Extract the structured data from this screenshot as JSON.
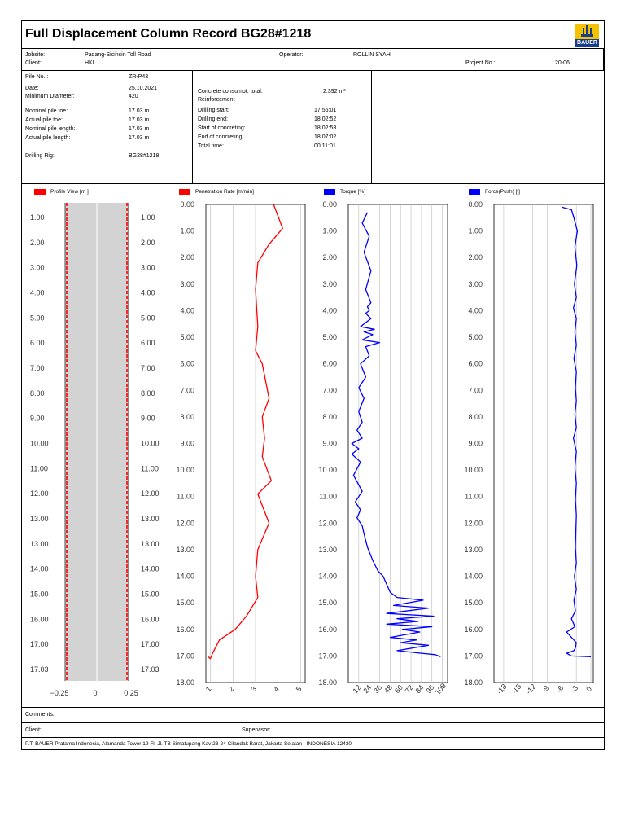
{
  "title": "Full Displacement Column Record BG28#1218",
  "logo_text": "BAUER",
  "colors": {
    "red": "#ff0000",
    "blue": "#0000ff",
    "logo_blue": "#1a3d8c",
    "logo_yellow": "#f5c200"
  },
  "info": {
    "jobsite_label": "Jobsite:",
    "jobsite": "Padang-Sicincin Toll Road",
    "operator_label": "Operator:",
    "operator": "ROLLIN SYAH",
    "client_label": "Client:",
    "client": "HKI",
    "project_label": "Project No.:",
    "project": "20-06",
    "pile_label": "Pile No..:",
    "pile": "ZR-P43",
    "date_label": "Date:",
    "date": "25.10.2021",
    "min_dia_label": "Minimum Diameter:",
    "min_dia": "420",
    "nom_toe_label": "Nominal pile toe:",
    "nom_toe": "17.03 m",
    "act_toe_label": "Actual pile toe:",
    "act_toe": "17.03 m",
    "nom_len_label": "Nominal pile length:",
    "nom_len": "17.03 m",
    "act_len_label": "Actual pile length:",
    "act_len": "17.03 m",
    "rig_label": "Drilling Rig:",
    "rig": "BG28#1218",
    "concrete_label": "Concrete consumpt. total:",
    "concrete": "2.392 m³",
    "reinf_label": "Reinforcement",
    "drill_start_label": "Drilling start:",
    "drill_start": "17:56:01",
    "drill_end_label": "Drilling end:",
    "drill_end": "18:02:52",
    "conc_start_label": "Start of concreting:",
    "conc_start": "18:02:53",
    "conc_end_label": "End of concreting:",
    "conc_end": "18:07:02",
    "total_label": "Total time:",
    "total": "00:11:01"
  },
  "footer": {
    "comments_label": "Comments:",
    "client_label": "Client:",
    "supervisor_label": "Supervisor:",
    "company": "P.T. BAUER Pratama Indonesia, Alamanda Tower 19 Fl, Jl. TB Simatupang Kav 23-24 Cilandak Barat, Jakarta Selatan - INDONESIA 12430"
  },
  "chart_data": [
    {
      "type": "area",
      "legend": "Profile View [m ]",
      "color": "#ff0000",
      "ytick_labels": [
        "1.00",
        "2.00",
        "3.00",
        "4.00",
        "5.00",
        "6.00",
        "7.00",
        "8.00",
        "9.00",
        "10.00",
        "11.00",
        "12.00",
        "13.00",
        "13.00",
        "14.00",
        "15.00",
        "16.00",
        "17.00",
        "17.03"
      ],
      "ytick_labels_right": [
        "1.00",
        "2.00",
        "3.00",
        "4.00",
        "5.00",
        "6.00",
        "7.00",
        "8.00",
        "9.00",
        "10.00",
        "11.00",
        "12.00",
        "13.00",
        "13.00",
        "14.00",
        "15.00",
        "16.00",
        "17.00",
        "17.03"
      ],
      "xtick_labels": [
        "−0.25",
        "0",
        "0.25"
      ],
      "depth_range": [
        0,
        17.03
      ],
      "xlim": [
        -0.25,
        0.25
      ]
    },
    {
      "type": "line",
      "legend": "Penetration Rate [m/min]",
      "color": "#ff0000",
      "ylim": [
        0,
        18
      ],
      "xlim": [
        0.8,
        5.2
      ],
      "ytick_labels": [
        "0.00",
        "1.00",
        "2.00",
        "3.00",
        "4.00",
        "5.00",
        "6.00",
        "7.00",
        "8.00",
        "9.00",
        "10.00",
        "11.00",
        "12.00",
        "13.00",
        "14.00",
        "15.00",
        "16.00",
        "17.00",
        "18.00"
      ],
      "xtick_labels": [
        "1",
        "2",
        "3",
        "4",
        "5"
      ],
      "x": [
        3.8,
        4.2,
        3.6,
        3.1,
        3.0,
        3.1,
        3.0,
        3.3,
        3.6,
        3.3,
        3.4,
        3.3,
        3.7,
        3.1,
        3.6,
        3.1,
        3.0,
        3.1,
        2.6,
        2.1,
        1.4,
        1.1,
        1.0,
        0.9
      ],
      "y": [
        0.0,
        0.9,
        1.5,
        2.2,
        3.2,
        4.6,
        5.5,
        6.0,
        7.3,
        8.0,
        8.8,
        9.5,
        10.4,
        10.9,
        12.0,
        13.0,
        14.0,
        14.8,
        15.5,
        16.0,
        16.4,
        16.9,
        17.1,
        17.03
      ]
    },
    {
      "type": "line",
      "legend": "Torque [%]",
      "color": "#0000ff",
      "ylim": [
        0,
        18
      ],
      "xlim": [
        0,
        114
      ],
      "ytick_labels": [
        "0.00",
        "1.00",
        "2.00",
        "3.00",
        "4.00",
        "5.00",
        "6.00",
        "7.00",
        "8.00",
        "9.00",
        "10.00",
        "11.00",
        "12.00",
        "13.00",
        "14.00",
        "15.00",
        "16.00",
        "17.00",
        "18.00"
      ],
      "xtick_labels": [
        "12",
        "24",
        "36",
        "48",
        "60",
        "72",
        "84",
        "96",
        "108"
      ],
      "x": [
        22,
        16,
        24,
        18,
        26,
        20,
        26,
        22,
        24,
        20,
        26,
        14,
        30,
        18,
        28,
        16,
        36,
        20,
        24,
        14,
        20,
        12,
        18,
        12,
        16,
        10,
        16,
        4,
        12,
        4,
        14,
        6,
        16,
        8,
        14,
        10,
        16,
        18,
        22,
        28,
        34,
        40,
        44,
        48,
        56,
        86,
        52,
        92,
        44,
        98,
        56,
        80,
        44,
        96,
        62,
        82,
        48,
        78,
        60,
        92,
        56,
        84,
        100,
        106
      ],
      "y": [
        0.3,
        0.7,
        1.2,
        1.8,
        2.5,
        3.2,
        3.7,
        3.85,
        4.0,
        4.1,
        4.3,
        4.6,
        4.7,
        4.8,
        4.9,
        5.1,
        5.2,
        5.35,
        5.7,
        6.0,
        6.5,
        6.9,
        7.3,
        7.8,
        8.2,
        8.5,
        8.8,
        9.0,
        9.2,
        9.4,
        9.7,
        10.2,
        10.8,
        11.2,
        11.5,
        11.8,
        12.1,
        12.4,
        12.9,
        13.4,
        13.8,
        14.0,
        14.3,
        14.6,
        14.8,
        14.9,
        15.1,
        15.2,
        15.4,
        15.5,
        15.6,
        15.7,
        15.8,
        15.9,
        16.0,
        16.1,
        16.3,
        16.4,
        16.5,
        16.6,
        16.8,
        16.9,
        16.95,
        17.03
      ]
    },
    {
      "type": "line",
      "legend": "Force(Push) [t]",
      "color": "#0000ff",
      "ylim": [
        0,
        18
      ],
      "xlim": [
        -20,
        0.5
      ],
      "ytick_labels": [
        "0.00",
        "1.00",
        "2.00",
        "3.00",
        "4.00",
        "5.00",
        "6.00",
        "7.00",
        "8.00",
        "9.00",
        "10.00",
        "11.00",
        "12.00",
        "13.00",
        "14.00",
        "15.00",
        "16.00",
        "17.00",
        "18.00"
      ],
      "xtick_labels": [
        "-18",
        "-15",
        "-12",
        "-9",
        "-6",
        "-3",
        "0"
      ],
      "x": [
        -6.0,
        -4.0,
        -3.5,
        -2.8,
        -3.3,
        -2.9,
        -3.4,
        -3.0,
        -3.6,
        -3.0,
        -3.3,
        -3.0,
        -3.5,
        -3.0,
        -3.2,
        -3.0,
        -3.3,
        -3.0,
        -3.6,
        -3.0,
        -3.3,
        -3.0,
        -3.2,
        -3.0,
        -3.1,
        -3.2,
        -3.0,
        -3.4,
        -3.0,
        -3.5,
        -3.2,
        -4.0,
        -3.3,
        -5.0,
        -4.0,
        -3.0,
        -3.2,
        -3.5,
        -5.0,
        -4.0,
        0.0
      ],
      "y": [
        0.1,
        0.2,
        0.5,
        1.0,
        1.6,
        2.3,
        3.0,
        3.5,
        3.9,
        4.3,
        4.8,
        5.3,
        5.8,
        6.3,
        6.9,
        7.4,
        7.9,
        8.4,
        8.8,
        9.3,
        9.9,
        10.5,
        11.1,
        11.7,
        12.3,
        12.9,
        13.5,
        14.0,
        14.5,
        14.9,
        15.3,
        15.6,
        15.9,
        16.1,
        16.3,
        16.5,
        16.7,
        16.8,
        16.9,
        17.0,
        17.03
      ]
    }
  ]
}
